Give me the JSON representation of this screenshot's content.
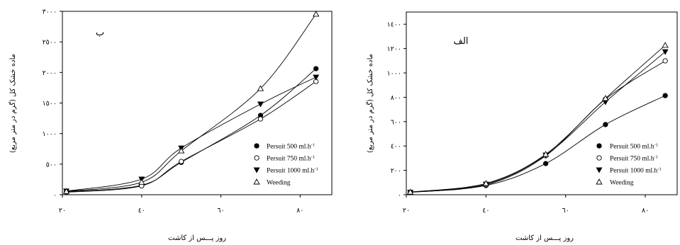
{
  "chart_data": [
    {
      "type": "line",
      "panel_label": "ب",
      "xlabel": "روز پـــس از کاشت",
      "ylabel": "ماده خشک کل (گرم در متر مربع)",
      "xlim": [
        20,
        88
      ],
      "ylim": [
        0,
        3000
      ],
      "x_ticks": [
        20,
        40,
        60,
        80
      ],
      "x_tick_labels": [
        "٢٠",
        "٤٠",
        "٦٠",
        "٨٠"
      ],
      "y_ticks": [
        0,
        500,
        1000,
        1500,
        2000,
        2500,
        3000
      ],
      "y_tick_labels": [
        "٠",
        "٥٠٠",
        "١٠٠٠",
        "١٥٠٠",
        "٢٠٠٠",
        "٢٥٠٠",
        "٣٠٠٠"
      ],
      "grid": false,
      "legend_position": "bottom-right",
      "x": [
        21,
        40,
        50,
        70,
        84
      ],
      "series": [
        {
          "name": "Persuit 500 ml.h",
          "name_superscript": "-1",
          "marker": "filled-circle",
          "values": [
            50,
            155,
            530,
            1297,
            2062
          ]
        },
        {
          "name": "Persuit 750 ml.h",
          "name_superscript": "-1",
          "marker": "open-circle",
          "values": [
            40,
            145,
            544,
            1239,
            1853
          ]
        },
        {
          "name": "Persuit 1000 ml.h",
          "name_superscript": "-1",
          "marker": "filled-triangle-down",
          "values": [
            60,
            255,
            764,
            1483,
            1923
          ]
        },
        {
          "name": "Weeding",
          "marker": "open-triangle-up",
          "values": [
            55,
            205,
            718,
            1737,
            2954
          ]
        }
      ]
    },
    {
      "type": "line",
      "panel_label": "الف",
      "xlabel": "روز پـــس از کاشت",
      "ylabel": "ماده خشک کل (گرم در متر مربع)",
      "xlim": [
        20,
        88
      ],
      "ylim": [
        0,
        1500
      ],
      "x_ticks": [
        20,
        40,
        60,
        80
      ],
      "x_tick_labels": [
        "٢٠",
        "٤٠",
        "٦٠",
        "٨٠"
      ],
      "y_ticks": [
        0,
        200,
        400,
        600,
        800,
        1000,
        1200,
        1400
      ],
      "y_tick_labels": [
        "٠",
        "٢٠٠",
        "٤٠٠",
        "٦٠٠",
        "٨٠٠",
        "١٠٠٠",
        "١٢٠٠",
        "١٤٠٠"
      ],
      "grid": false,
      "legend_position": "bottom-right",
      "x": [
        21,
        40,
        55,
        70,
        85
      ],
      "series": [
        {
          "name": "Persuit 500 ml.h",
          "name_superscript": "-1",
          "marker": "filled-circle",
          "values": [
            20,
            76,
            256,
            576,
            814
          ]
        },
        {
          "name": "Persuit 750 ml.h",
          "name_superscript": "-1",
          "marker": "open-circle",
          "values": [
            20,
            81,
            320,
            785,
            1099
          ]
        },
        {
          "name": "Persuit 1000 ml.h",
          "name_superscript": "-1",
          "marker": "filled-triangle-down",
          "values": [
            21,
            87,
            325,
            762,
            1174
          ]
        },
        {
          "name": "Weeding",
          "marker": "open-triangle-up",
          "values": [
            22,
            93,
            332,
            791,
            1227
          ]
        }
      ]
    }
  ]
}
